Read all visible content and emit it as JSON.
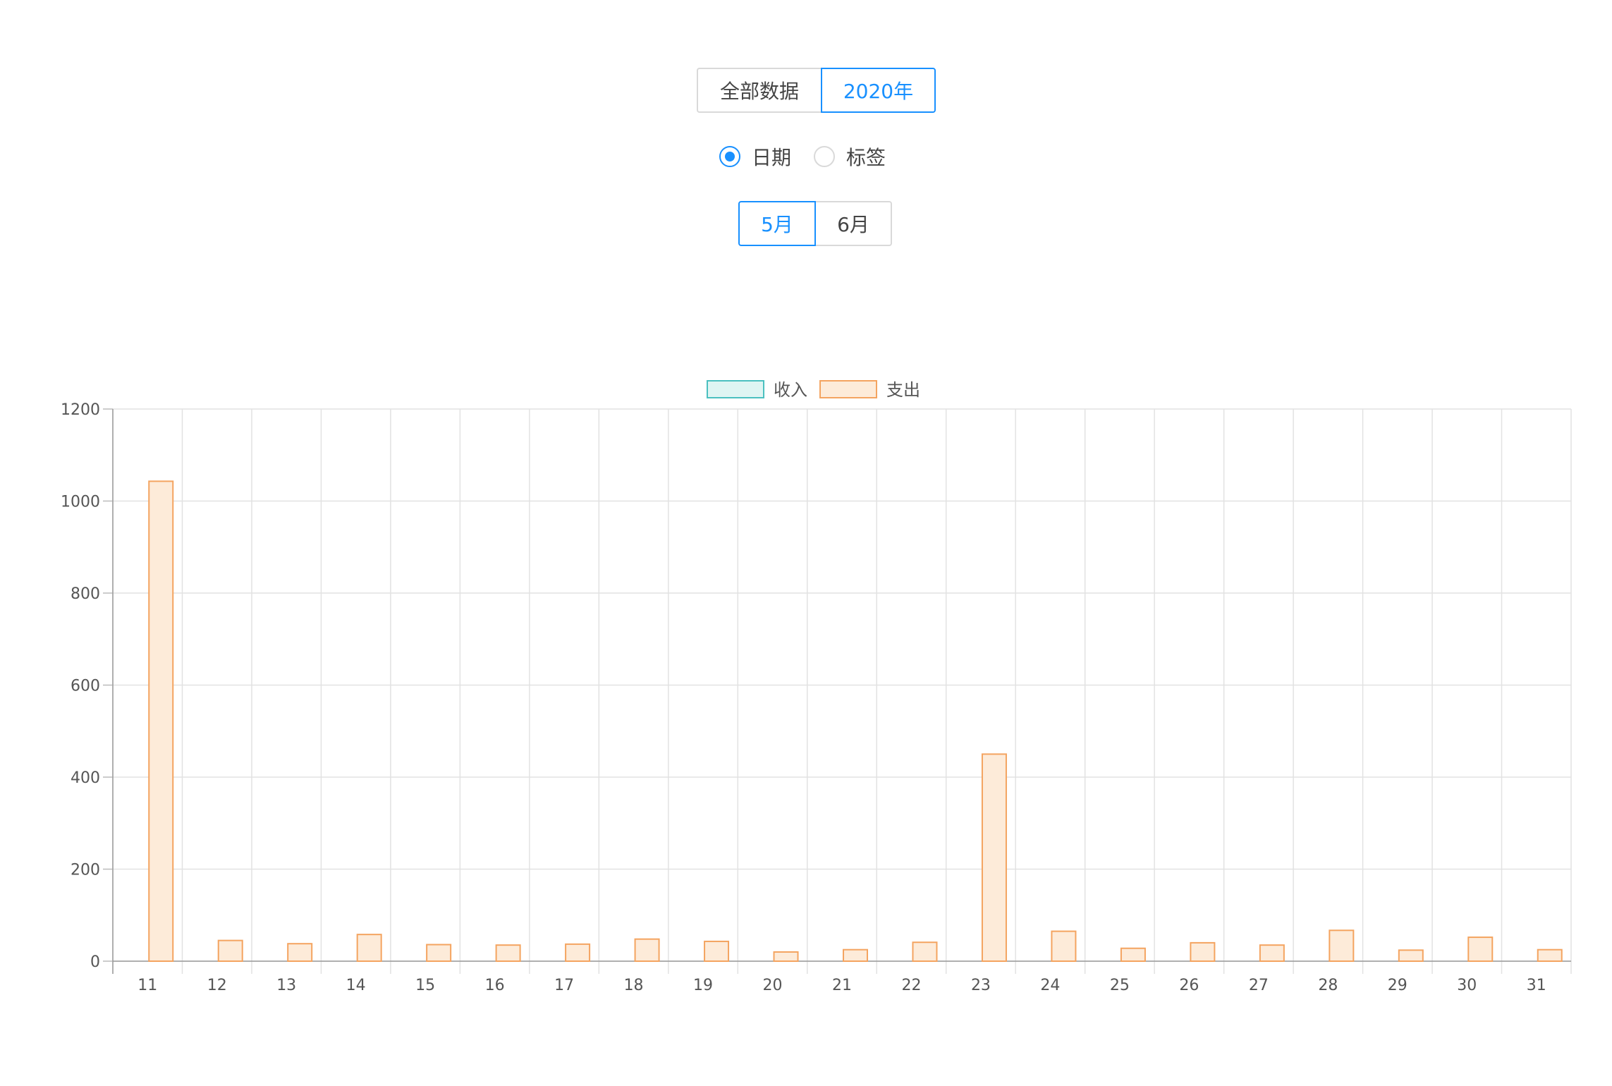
{
  "controls": {
    "scope_tabs": [
      {
        "label": "全部数据",
        "active": false
      },
      {
        "label": "2020年",
        "active": true
      }
    ],
    "group_by": [
      {
        "label": "日期",
        "checked": true
      },
      {
        "label": "标签",
        "checked": false
      }
    ],
    "month_tabs": [
      {
        "label": "5月",
        "active": true
      },
      {
        "label": "6月",
        "active": false
      }
    ]
  },
  "colors": {
    "accent": "#1890ff",
    "income_fill": "#dff5f3",
    "income_border": "#4bc0c0",
    "expense_fill": "#fdebd9",
    "expense_border": "#f4a460",
    "grid": "#e2e2e2"
  },
  "chart_data": {
    "type": "bar",
    "legend_position": "top",
    "grid": true,
    "categories": [
      "11",
      "12",
      "13",
      "14",
      "15",
      "16",
      "17",
      "18",
      "19",
      "20",
      "21",
      "22",
      "23",
      "24",
      "25",
      "26",
      "27",
      "28",
      "29",
      "30",
      "31"
    ],
    "series": [
      {
        "name": "收入",
        "values": [
          0,
          0,
          0,
          0,
          0,
          0,
          0,
          0,
          0,
          0,
          0,
          0,
          0,
          0,
          0,
          0,
          0,
          0,
          0,
          0,
          0
        ]
      },
      {
        "name": "支出",
        "values": [
          1043,
          45,
          38,
          58,
          36,
          35,
          37,
          48,
          43,
          20,
          25,
          41,
          450,
          65,
          28,
          40,
          35,
          67,
          24,
          52,
          25
        ]
      }
    ],
    "ylim": [
      0,
      1200
    ],
    "yticks": [
      0,
      200,
      400,
      600,
      800,
      1000,
      1200
    ]
  }
}
